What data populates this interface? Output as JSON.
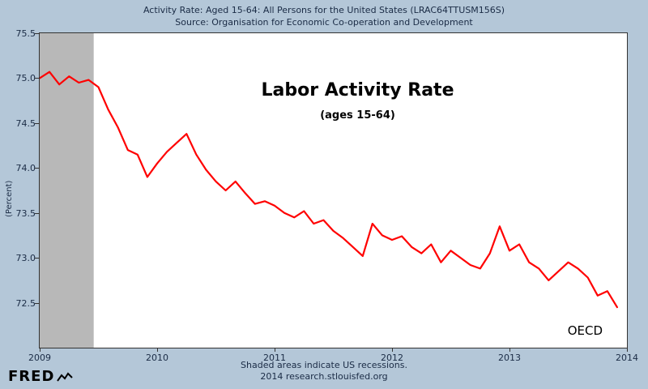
{
  "header": {
    "line1": "Activity Rate: Aged 15-64: All Persons for the United States (LRAC64TTUSM156S)",
    "line2": "Source: Organisation for Economic Co-operation and Development"
  },
  "footer": {
    "note": "Shaded areas indicate US recessions.",
    "attribution": "2014 research.stlouisfed.org"
  },
  "logo": {
    "text": "FRED"
  },
  "colors": {
    "background": "#b4c7d8",
    "plot_background": "#ffffff",
    "line": "#ff0000",
    "recession": "#b8b8b8",
    "text": "#1a2b45",
    "border": "#333333"
  },
  "chart_data": {
    "type": "line",
    "title": "Labor Activity Rate",
    "subtitle": "(ages 15-64)",
    "ylabel": "(Percent)",
    "watermark": "OECD",
    "grid": false,
    "legend": false,
    "xlim": [
      2009,
      2014
    ],
    "ylim": [
      72.0,
      75.5
    ],
    "xticks": [
      2009,
      2010,
      2011,
      2012,
      2013,
      2014
    ],
    "yticks": [
      75.5,
      75.0,
      74.5,
      74.0,
      73.5,
      73.0,
      72.5
    ],
    "recession_bands": [
      {
        "start": 2009.0,
        "end": 2009.46
      }
    ],
    "series": [
      {
        "name": "Activity Rate: Aged 15-64: All Persons for the United States",
        "start_year": 2009,
        "frequency": "monthly",
        "values": [
          75.0,
          75.07,
          74.93,
          75.02,
          74.95,
          74.98,
          74.9,
          74.65,
          74.45,
          74.2,
          74.15,
          73.9,
          74.05,
          74.18,
          74.28,
          74.38,
          74.15,
          73.98,
          73.85,
          73.75,
          73.85,
          73.72,
          73.6,
          73.63,
          73.58,
          73.5,
          73.45,
          73.52,
          73.38,
          73.42,
          73.3,
          73.22,
          73.12,
          73.02,
          73.38,
          73.25,
          73.2,
          73.24,
          73.12,
          73.05,
          73.15,
          72.95,
          73.08,
          73.0,
          72.92,
          72.88,
          73.05,
          73.35,
          73.08,
          73.15,
          72.95,
          72.88,
          72.75,
          72.85,
          72.95,
          72.88,
          72.78,
          72.58,
          72.63,
          72.45
        ]
      }
    ]
  }
}
